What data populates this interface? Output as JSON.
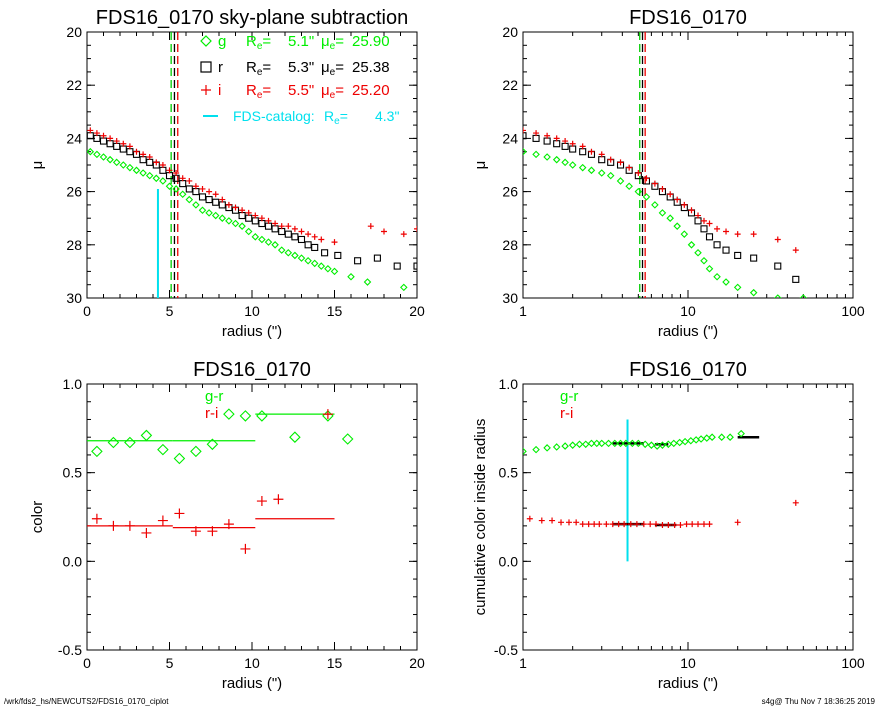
{
  "footer": {
    "left": "/wrk/fds2_hs/NEWCUTS2/FDS16_0170_ciplot",
    "right": "s4g@  Thu Nov  7 18:36:25 2019"
  },
  "chart_data": [
    {
      "type": "scatter",
      "title": "FDS16_0170 sky-plane subtraction",
      "xlabel": "radius (\")",
      "ylabel": "μ",
      "xscale": "linear",
      "xlim": [
        0,
        20
      ],
      "ylim": [
        30,
        20
      ],
      "xticks": [
        0,
        5,
        10,
        15,
        20
      ],
      "yticks": [
        20,
        22,
        24,
        26,
        28,
        30
      ],
      "legend": [
        {
          "symbol": "◇",
          "band": "g",
          "re": "5.1\"",
          "mu": "25.90",
          "color": "#00ee00"
        },
        {
          "symbol": "□",
          "band": "r",
          "re": "5.3\"",
          "mu": "25.38",
          "color": "#000000"
        },
        {
          "symbol": "+",
          "band": "i",
          "re": "5.5\"",
          "mu": "25.20",
          "color": "#ee0000"
        },
        {
          "symbol": "—",
          "band": "FDS-catalog:",
          "re": "4.3\"",
          "mu": "",
          "color": "#00e0ee"
        }
      ],
      "vlines": [
        {
          "x": 5.1,
          "color": "#00cc00",
          "dash": true
        },
        {
          "x": 5.3,
          "color": "#000000",
          "dash": true
        },
        {
          "x": 5.5,
          "color": "#ee0000",
          "dash": true
        }
      ],
      "catalog_line": {
        "x": 4.3,
        "y_from": 25.9,
        "y_to": 30,
        "color": "#00e0ee"
      },
      "series": [
        {
          "name": "g",
          "marker": "diamond",
          "color": "#00ee00",
          "x": [
            0.2,
            0.6,
            1.0,
            1.4,
            1.8,
            2.2,
            2.6,
            3.0,
            3.4,
            3.8,
            4.2,
            4.6,
            5.0,
            5.4,
            5.8,
            6.2,
            6.6,
            7.0,
            7.4,
            7.8,
            8.2,
            8.6,
            9.0,
            9.4,
            9.8,
            10.2,
            10.6,
            11.0,
            11.4,
            11.8,
            12.2,
            12.6,
            13.0,
            13.4,
            13.8,
            14.2,
            14.6,
            15.0,
            16.0,
            17.0,
            19.2
          ],
          "y": [
            24.5,
            24.6,
            24.7,
            24.8,
            24.9,
            25.0,
            25.1,
            25.2,
            25.3,
            25.4,
            25.5,
            25.6,
            25.8,
            25.9,
            26.1,
            26.3,
            26.5,
            26.7,
            26.8,
            26.9,
            27.0,
            27.1,
            27.2,
            27.3,
            27.5,
            27.7,
            27.8,
            27.9,
            28.0,
            28.2,
            28.3,
            28.4,
            28.5,
            28.6,
            28.7,
            28.8,
            28.9,
            29.0,
            29.2,
            29.4,
            29.6
          ]
        },
        {
          "name": "r",
          "marker": "square",
          "color": "#000000",
          "x": [
            0.2,
            0.6,
            1.0,
            1.4,
            1.8,
            2.2,
            2.6,
            3.0,
            3.4,
            3.8,
            4.2,
            4.6,
            5.0,
            5.4,
            5.8,
            6.2,
            6.6,
            7.0,
            7.4,
            7.8,
            8.2,
            8.6,
            9.0,
            9.4,
            9.8,
            10.2,
            10.6,
            11.0,
            11.4,
            11.8,
            12.2,
            12.6,
            13.0,
            13.4,
            13.8,
            14.4,
            15.2,
            16.4,
            17.6,
            18.8,
            20.0
          ],
          "y": [
            23.9,
            24.0,
            24.1,
            24.2,
            24.3,
            24.4,
            24.5,
            24.6,
            24.8,
            24.9,
            25.0,
            25.2,
            25.4,
            25.5,
            25.7,
            25.9,
            26.0,
            26.2,
            26.3,
            26.4,
            26.5,
            26.6,
            26.7,
            26.9,
            27.0,
            27.1,
            27.2,
            27.3,
            27.4,
            27.5,
            27.6,
            27.7,
            27.8,
            28.0,
            28.1,
            28.3,
            28.4,
            28.6,
            28.5,
            28.8,
            28.8
          ]
        },
        {
          "name": "i",
          "marker": "plus",
          "color": "#ee0000",
          "x": [
            0.2,
            0.6,
            1.0,
            1.4,
            1.8,
            2.2,
            2.6,
            3.0,
            3.4,
            3.8,
            4.2,
            4.6,
            5.0,
            5.4,
            5.8,
            6.2,
            6.6,
            7.0,
            7.4,
            7.8,
            8.2,
            8.6,
            9.0,
            9.4,
            9.8,
            10.2,
            10.6,
            11.0,
            11.4,
            11.8,
            12.2,
            12.6,
            13.0,
            13.4,
            13.8,
            14.2,
            15.0,
            17.2,
            18.0,
            19.2,
            20.0
          ],
          "y": [
            23.7,
            23.8,
            23.9,
            24.0,
            24.1,
            24.2,
            24.3,
            24.5,
            24.6,
            24.7,
            24.9,
            25.0,
            25.2,
            25.3,
            25.5,
            25.6,
            25.8,
            25.9,
            26.0,
            26.1,
            26.3,
            26.5,
            26.6,
            26.7,
            26.8,
            26.9,
            27.0,
            27.1,
            27.2,
            27.3,
            27.3,
            27.4,
            27.5,
            27.6,
            27.7,
            27.8,
            27.9,
            27.3,
            27.5,
            27.6,
            27.4
          ]
        }
      ]
    },
    {
      "type": "scatter",
      "title": "FDS16_0170",
      "xlabel": "radius (\")",
      "ylabel": "μ",
      "xscale": "log",
      "xlim": [
        1,
        100
      ],
      "ylim": [
        30,
        20
      ],
      "xticks": [
        1,
        10,
        100
      ],
      "yticks": [
        20,
        22,
        24,
        26,
        28,
        30
      ],
      "vlines": [
        {
          "x": 5.1,
          "color": "#00cc00",
          "dash": true
        },
        {
          "x": 5.3,
          "color": "#000000",
          "dash": true
        },
        {
          "x": 5.5,
          "color": "#ee0000",
          "dash": true
        }
      ],
      "series": [
        {
          "name": "g",
          "marker": "diamond",
          "color": "#00ee00",
          "x": [
            1.0,
            1.2,
            1.4,
            1.6,
            1.8,
            2.0,
            2.3,
            2.6,
            3.0,
            3.4,
            3.9,
            4.4,
            5.0,
            5.6,
            6.3,
            7.0,
            7.8,
            8.6,
            9.5,
            10.5,
            11.5,
            12.5,
            13.5,
            15.0,
            17.0,
            20.0,
            25.0,
            35.0,
            50.0
          ],
          "y": [
            24.5,
            24.6,
            24.7,
            24.8,
            24.9,
            25.0,
            25.1,
            25.2,
            25.3,
            25.4,
            25.6,
            25.8,
            26.0,
            26.2,
            26.5,
            26.8,
            27.0,
            27.3,
            27.6,
            28.0,
            28.3,
            28.6,
            28.9,
            29.2,
            29.4,
            29.6,
            29.8,
            30.0,
            30.0
          ]
        },
        {
          "name": "r",
          "marker": "square",
          "color": "#000000",
          "x": [
            1.0,
            1.2,
            1.4,
            1.6,
            1.8,
            2.0,
            2.3,
            2.6,
            3.0,
            3.4,
            3.9,
            4.4,
            5.0,
            5.6,
            6.3,
            7.0,
            7.8,
            8.6,
            9.5,
            10.5,
            11.5,
            12.5,
            13.5,
            15.0,
            17.0,
            20.0,
            25.0,
            35.0,
            45.0
          ],
          "y": [
            23.9,
            24.0,
            24.1,
            24.2,
            24.3,
            24.4,
            24.5,
            24.6,
            24.8,
            24.9,
            25.0,
            25.2,
            25.4,
            25.6,
            25.8,
            26.0,
            26.2,
            26.4,
            26.6,
            26.8,
            27.1,
            27.4,
            27.7,
            28.0,
            28.2,
            28.4,
            28.5,
            28.8,
            29.3
          ]
        },
        {
          "name": "i",
          "marker": "plus",
          "color": "#ee0000",
          "x": [
            1.0,
            1.2,
            1.4,
            1.6,
            1.8,
            2.0,
            2.3,
            2.6,
            3.0,
            3.4,
            3.9,
            4.4,
            5.0,
            5.6,
            6.3,
            7.0,
            7.8,
            8.6,
            9.5,
            10.5,
            11.5,
            12.5,
            13.5,
            15.0,
            17.0,
            20.0,
            25.0,
            35.0,
            45.0
          ],
          "y": [
            23.7,
            23.8,
            23.9,
            24.0,
            24.1,
            24.2,
            24.3,
            24.5,
            24.6,
            24.8,
            24.9,
            25.1,
            25.3,
            25.5,
            25.7,
            25.9,
            26.1,
            26.3,
            26.5,
            26.7,
            26.9,
            27.1,
            27.2,
            27.4,
            27.5,
            27.6,
            27.6,
            27.8,
            28.2
          ]
        }
      ]
    },
    {
      "type": "scatter",
      "title": "FDS16_0170",
      "xlabel": "radius (\")",
      "ylabel": "color",
      "xscale": "linear",
      "xlim": [
        0,
        20
      ],
      "ylim": [
        -0.5,
        1.0
      ],
      "xticks": [
        0,
        5,
        10,
        15,
        20
      ],
      "yticks": [
        -0.5,
        0.0,
        0.5,
        1.0
      ],
      "legend": [
        {
          "label": "g-r",
          "color": "#00ee00"
        },
        {
          "label": "r-i",
          "color": "#ee0000"
        }
      ],
      "series": [
        {
          "name": "g-r",
          "marker": "diamond",
          "color": "#00ee00",
          "x": [
            0.6,
            1.6,
            2.6,
            3.6,
            4.6,
            5.6,
            6.6,
            7.6,
            8.6,
            9.6,
            10.6,
            12.6,
            14.6,
            15.8
          ],
          "y": [
            0.62,
            0.67,
            0.67,
            0.71,
            0.63,
            0.58,
            0.62,
            0.66,
            0.83,
            0.82,
            0.82,
            0.7,
            0.82,
            0.69
          ]
        },
        {
          "name": "r-i",
          "marker": "plus",
          "color": "#ee0000",
          "x": [
            0.6,
            1.6,
            2.6,
            3.6,
            4.6,
            5.6,
            6.6,
            7.6,
            8.6,
            9.6,
            10.6,
            11.6,
            14.6
          ],
          "y": [
            0.24,
            0.2,
            0.2,
            0.16,
            0.23,
            0.27,
            0.17,
            0.17,
            0.21,
            0.07,
            0.34,
            0.35,
            0.83
          ]
        }
      ],
      "segments": [
        {
          "color": "#00ee00",
          "x": [
            0,
            5.2
          ],
          "y": 0.68
        },
        {
          "color": "#00ee00",
          "x": [
            5.2,
            10.2
          ],
          "y": 0.68
        },
        {
          "color": "#00ee00",
          "x": [
            10.2,
            15.0
          ],
          "y": 0.83
        },
        {
          "color": "#ee0000",
          "x": [
            0,
            5.2
          ],
          "y": 0.2
        },
        {
          "color": "#ee0000",
          "x": [
            5.2,
            10.2
          ],
          "y": 0.19
        },
        {
          "color": "#ee0000",
          "x": [
            10.2,
            15.0
          ],
          "y": 0.24
        }
      ]
    },
    {
      "type": "scatter",
      "title": "FDS16_0170",
      "xlabel": "radius (\")",
      "ylabel": "cumulative color inside radius",
      "xscale": "log",
      "xlim": [
        1,
        100
      ],
      "ylim": [
        -0.5,
        1.0
      ],
      "xticks": [
        1,
        10,
        100
      ],
      "yticks": [
        -0.5,
        0.0,
        0.5,
        1.0
      ],
      "legend": [
        {
          "label": "g-r",
          "color": "#00ee00"
        },
        {
          "label": "r-i",
          "color": "#ee0000"
        }
      ],
      "catalog_line": {
        "x": 4.3,
        "y_from": 0.0,
        "y_to": 0.8,
        "color": "#00e0ee"
      },
      "series": [
        {
          "name": "g-r",
          "marker": "diamond",
          "color": "#00ee00",
          "x": [
            1.0,
            1.2,
            1.4,
            1.6,
            1.8,
            2.0,
            2.2,
            2.4,
            2.6,
            2.8,
            3.0,
            3.3,
            3.6,
            3.9,
            4.2,
            4.6,
            5.0,
            5.5,
            6.0,
            6.5,
            7.0,
            7.6,
            8.2,
            8.9,
            9.6,
            10.4,
            11.2,
            12.0,
            13.0,
            14.0,
            16.0,
            18.0,
            21.0
          ],
          "y": [
            0.62,
            0.63,
            0.64,
            0.645,
            0.65,
            0.655,
            0.66,
            0.66,
            0.665,
            0.665,
            0.665,
            0.665,
            0.665,
            0.665,
            0.665,
            0.665,
            0.665,
            0.66,
            0.655,
            0.65,
            0.655,
            0.66,
            0.665,
            0.67,
            0.675,
            0.68,
            0.685,
            0.69,
            0.695,
            0.7,
            0.7,
            0.7,
            0.72
          ]
        },
        {
          "name": "r-i",
          "marker": "plus",
          "color": "#ee0000",
          "x": [
            1.1,
            1.3,
            1.5,
            1.7,
            1.9,
            2.1,
            2.3,
            2.5,
            2.7,
            2.9,
            3.2,
            3.5,
            3.8,
            4.1,
            4.5,
            4.9,
            5.4,
            5.9,
            6.4,
            7.0,
            7.6,
            8.3,
            9.0,
            9.8,
            10.6,
            11.5,
            12.5,
            13.5,
            20.0,
            45.0
          ],
          "y": [
            0.24,
            0.23,
            0.23,
            0.22,
            0.22,
            0.22,
            0.21,
            0.21,
            0.21,
            0.21,
            0.21,
            0.21,
            0.21,
            0.21,
            0.21,
            0.21,
            0.21,
            0.21,
            0.21,
            0.205,
            0.205,
            0.205,
            0.205,
            0.21,
            0.21,
            0.21,
            0.21,
            0.21,
            0.22,
            0.33
          ]
        }
      ],
      "segments": [
        {
          "color": "#000000",
          "x": [
            3.5,
            5.4
          ],
          "y": 0.665
        },
        {
          "color": "#000000",
          "x": [
            6.3,
            7.6
          ],
          "y": 0.66
        },
        {
          "color": "#000000",
          "x": [
            20.0,
            27.0
          ],
          "y": 0.7
        },
        {
          "color": "#000000",
          "x": [
            3.5,
            5.4
          ],
          "y": 0.21
        },
        {
          "color": "#000000",
          "x": [
            6.3,
            8.5
          ],
          "y": 0.205
        }
      ]
    }
  ]
}
